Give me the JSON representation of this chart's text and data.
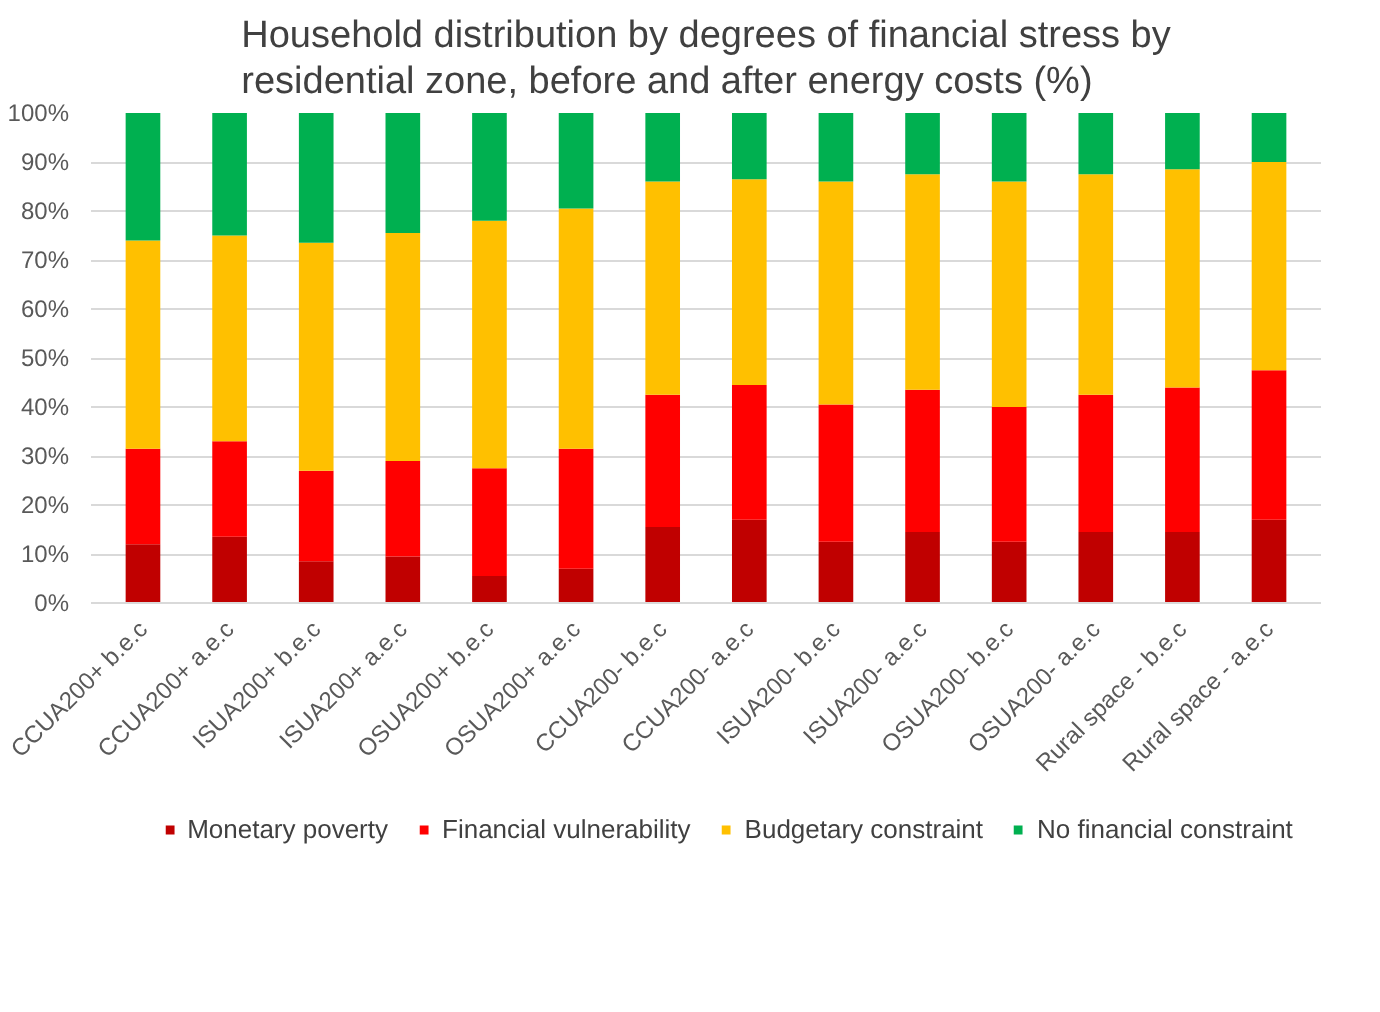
{
  "chart_data": {
    "type": "bar",
    "stacked": true,
    "title": "Household distribution by degrees of financial stress by residential zone, before and after energy costs (%)",
    "categories": [
      "CCUA200+ b.e.c",
      "CCUA200+ a.e.c",
      "ISUA200+ b.e.c",
      "ISUA200+ a.e.c",
      "OSUA200+ b.e.c",
      "OSUA200+ a.e.c",
      "CCUA200- b.e.c",
      "CCUA200- a.e.c",
      "ISUA200- b.e.c",
      "ISUA200- a.e.c",
      "OSUA200- b.e.c",
      "OSUA200- a.e.c",
      "Rural space - b.e.c",
      "Rural space - a.e.c"
    ],
    "series": [
      {
        "name": "Monetary poverty",
        "color": "#c00000",
        "values": [
          12,
          13.5,
          8.5,
          9.5,
          5.5,
          7,
          15.5,
          17,
          12.5,
          14.5,
          12.5,
          14.5,
          14.5,
          17
        ]
      },
      {
        "name": "Financial vulnerability",
        "color": "#ff0000",
        "values": [
          19.5,
          19.5,
          18.5,
          19.5,
          22,
          24.5,
          27,
          27.5,
          28,
          29,
          27.5,
          28,
          29.5,
          30.5
        ]
      },
      {
        "name": "Budgetary constraint",
        "color": "#ffc000",
        "values": [
          42.5,
          42,
          46.5,
          46.5,
          50.5,
          49,
          43.5,
          42,
          45.5,
          44,
          46,
          45,
          44.5,
          42.5
        ]
      },
      {
        "name": "No financial constraint",
        "color": "#00b050",
        "values": [
          26,
          25,
          26.5,
          24.5,
          22,
          19.5,
          14,
          13.5,
          14,
          12.5,
          14,
          12.5,
          11.5,
          10
        ]
      }
    ],
    "ylim": [
      0,
      100
    ],
    "yticks": [
      {
        "value": 0,
        "label": "0%"
      },
      {
        "value": 10,
        "label": "10%"
      },
      {
        "value": 20,
        "label": "20%"
      },
      {
        "value": 30,
        "label": "30%"
      },
      {
        "value": 40,
        "label": "40%"
      },
      {
        "value": 50,
        "label": "50%"
      },
      {
        "value": 60,
        "label": "60%"
      },
      {
        "value": 70,
        "label": "70%"
      },
      {
        "value": 80,
        "label": "80%"
      },
      {
        "value": 90,
        "label": "90%"
      },
      {
        "value": 100,
        "label": "100%"
      }
    ],
    "grid": "y",
    "legend": "bottom"
  }
}
